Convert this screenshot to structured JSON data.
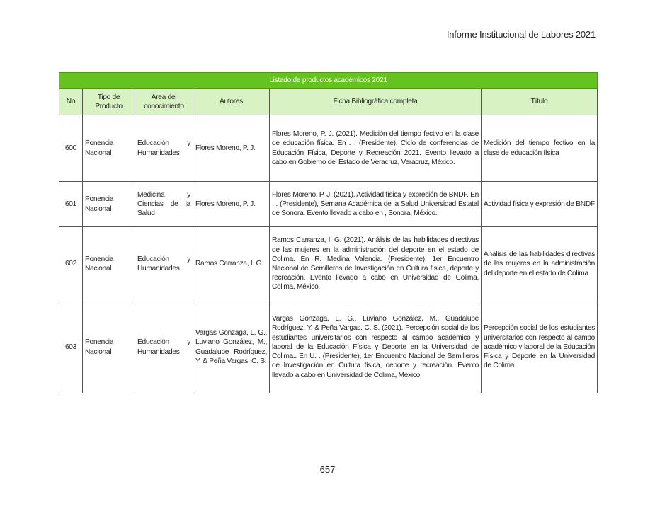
{
  "header": {
    "running_title": "Informe Institucional de Labores 2021"
  },
  "table": {
    "title": "Listado de productos académicos 2021",
    "accent_color": "#66c21f",
    "header_bg": "#d9f2c4",
    "columns": [
      "No",
      "Tipo de Producto",
      "Área del conocimiento",
      "Autores",
      "Ficha Bibliográfica completa",
      "Título"
    ],
    "rows": [
      {
        "no": "600",
        "tipo": "Ponencia Nacional",
        "area": "Educación y Humanidades",
        "autores": "Flores Moreno, P. J.",
        "ficha": "Flores Moreno, P. J. (2021). Medición del tiempo fectivo en la clase de educación física. En . . (Presidente), Ciclo de conferencias de Educación Física, Deporte y Recreación 2021. Evento llevado a cabo en Gobierno del Estado de Veracruz, Veracruz, México.",
        "titulo": "Medición del tiempo fectivo en la clase de educación física"
      },
      {
        "no": "601",
        "tipo": "Ponencia Nacional",
        "area": "Medicina y Ciencias de la Salud",
        "autores": "Flores Moreno, P. J.",
        "ficha": "Flores Moreno, P. J. (2021). Actividad física y expresión de BNDF. En . . (Presidente), Semana Académica de la Salud Universidad Estatal de Sonora. Evento llevado a cabo en , Sonora, México.",
        "titulo": "Actividad física y expresión de BNDF"
      },
      {
        "no": "602",
        "tipo": "Ponencia Nacional",
        "area": "Educación y Humanidades",
        "autores": "Ramos Carranza, I. G.",
        "ficha": "Ramos Carranza, I. G. (2021). Análisis de las habilidades directivas de las mujeres en la administración del deporte en el estado de Colima. En R. Medina Valencia. (Presidente), 1er Encuentro Nacional de Semilleros de Investigación en Cultura física, deporte y recreación. Evento llevado a cabo en Universidad de Colima, Colima, México.",
        "titulo": "Análisis de las habilidades directivas de las mujeres en la administración del deporte en el estado de Colima"
      },
      {
        "no": "603",
        "tipo": "Ponencia Nacional",
        "area": "Educación y Humanidades",
        "autores": "Vargas Gonzaga, L. G., Luviano González, M., Guadalupe Rodríguez, Y. & Peña Vargas, C. S.",
        "ficha": "Vargas Gonzaga, L. G., Luviano González, M., Guadalupe Rodríguez, Y. & Peña Vargas, C. S. (2021). Percepción social de los estudiantes universitarios con respecto al campo académico y laboral de la Educación Física y Deporte en la Universidad de Colima.. En U. . (Presidente), 1er Encuentro Nacional de Semilleros de Investigación en Cultura física, deporte y recreación. Evento llevado a cabo en Universidad de Colima, México.",
        "titulo": "Percepción social de los estudiantes universitarios con respecto al campo académico y laboral de la Educación Física y Deporte en la Universidad de Colima."
      }
    ]
  },
  "footer": {
    "page_number": "657"
  }
}
